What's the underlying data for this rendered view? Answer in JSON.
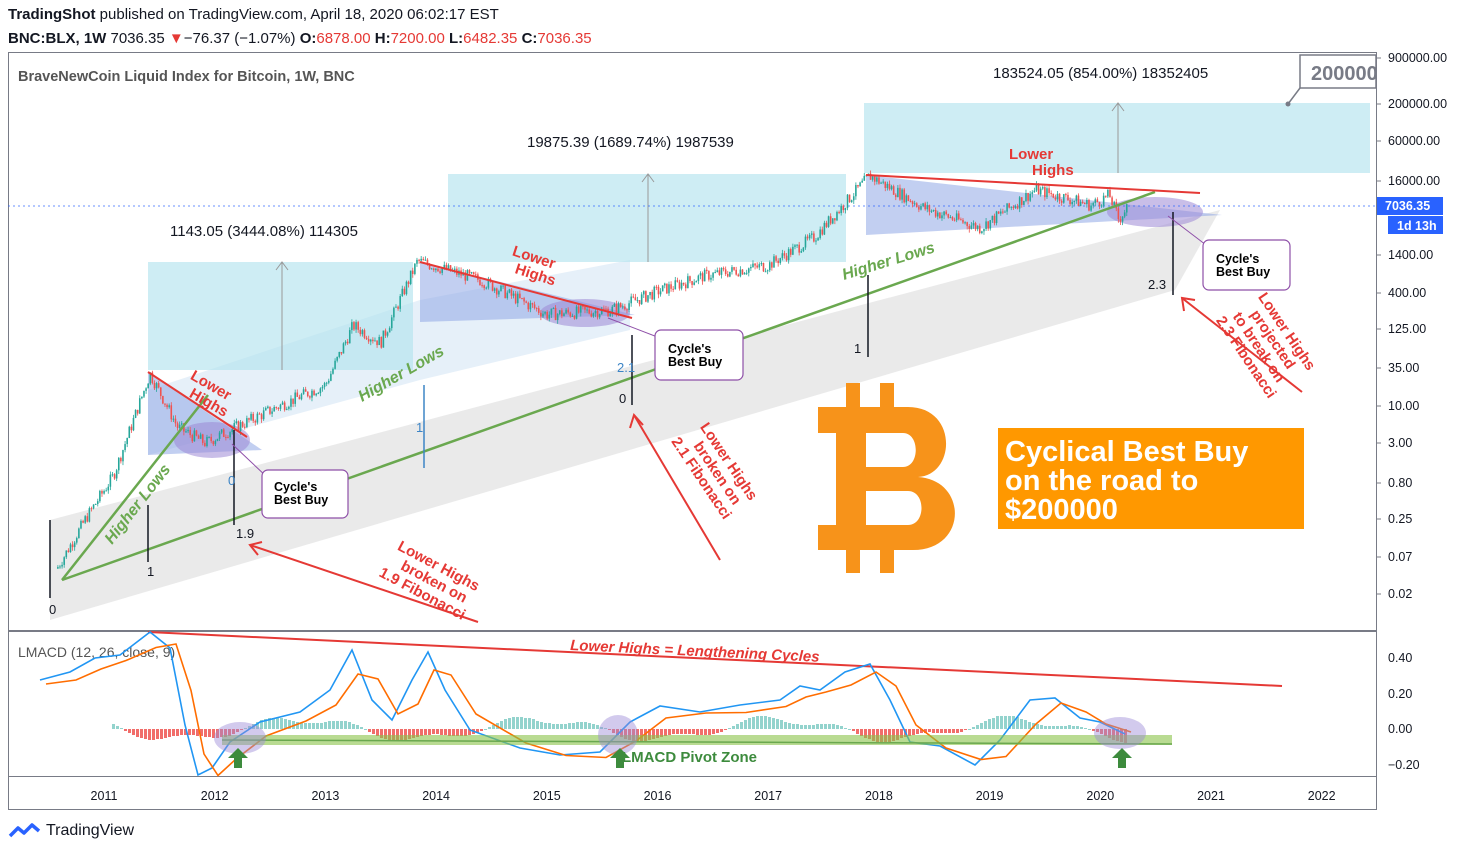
{
  "header": {
    "publisher": "TradingShot",
    "published_text": "published on TradingView.com, April 18, 2020 06:02:17 EST",
    "symbol": "BNC:BLX, 1W",
    "last": "7036.35",
    "change_arrow": "▼",
    "change": "−76.37 (−1.07%)",
    "o_label": "O:",
    "o_value": "6878.00",
    "h_label": "H:",
    "h_value": "7200.00",
    "l_label": "L:",
    "l_value": "6482.35",
    "c_label": "C:",
    "c_value": "7036.35"
  },
  "chart": {
    "title": "BraveNewCoin Liquid Index for Bitcoin, 1W, BNC",
    "price_tag": "7036.35",
    "countdown_tag": "1d 13h",
    "target_callout": "200000",
    "measure_labels": {
      "m1": "1143.05 (3444.08%) 114305",
      "m2": "19875.39 (1689.74%) 1987539",
      "m3": "183524.05 (854.00%) 18352405"
    },
    "annotations": {
      "lower_highs": [
        "Lower",
        "Highs"
      ],
      "higher_lows": "Higher Lows",
      "best_buy": [
        "Cycle's",
        "Best Buy"
      ],
      "broken_19": [
        "Lower Highs",
        "broken on",
        "1.9 Fibonacci"
      ],
      "broken_21": [
        "Lower Highs",
        "broken on",
        "2.1 Fibonacci"
      ],
      "projected_23": [
        "Lower Highs",
        "projected",
        "to break on",
        "2.3 Fibonacci"
      ],
      "cyclical": [
        "Cyclical Best Buy",
        "on the road to",
        "$200000"
      ],
      "lengthening": "Lower Highs = Lengthening Cycles",
      "pivot_zone": "LMACD Pivot Zone"
    },
    "fib_labels": {
      "f0": "0",
      "f1": "1",
      "f19": "1.9",
      "g0": "0",
      "g1": "1",
      "g21": "2.1",
      "h1": "1",
      "h23": "2.3",
      "b0": "0",
      "b1": "1"
    },
    "accent_orange": "#f7931a",
    "callout_orange": "#ff9800",
    "lower_highs_color": "#e53935",
    "higher_lows_color": "#6aa84f"
  },
  "indicator": {
    "title": "LMACD (12, 26, close, 9)",
    "yticks": [
      "0.40",
      "0.20",
      "0.00",
      "−0.20"
    ]
  },
  "chart_data": {
    "type": "line",
    "title": "BraveNewCoin Liquid Index for Bitcoin, 1W, BNC",
    "xlabel": "",
    "ylabel": "",
    "y_scale": "log",
    "x_ticks": [
      "2011",
      "2012",
      "2013",
      "2014",
      "2015",
      "2016",
      "2017",
      "2018",
      "2019",
      "2020",
      "2021",
      "2022"
    ],
    "y_ticks": [
      "900000.00",
      "200000.00",
      "60000.00",
      "16000.00",
      "1400.00",
      "400.00",
      "125.00",
      "35.00",
      "10.00",
      "3.00",
      "0.80",
      "0.25",
      "0.07",
      "0.02"
    ],
    "series": [
      {
        "values": [
          {
            "x": "2010-08",
            "y": 0.05
          },
          {
            "x": "2010-11",
            "y": 0.25
          },
          {
            "x": "2011-02",
            "y": 1.0
          },
          {
            "x": "2011-06",
            "y": 29
          },
          {
            "x": "2011-09",
            "y": 5
          },
          {
            "x": "2011-12",
            "y": 3
          },
          {
            "x": "2012-03",
            "y": 4.8
          },
          {
            "x": "2012-08",
            "y": 10
          },
          {
            "x": "2013-01",
            "y": 20
          },
          {
            "x": "2013-04",
            "y": 140
          },
          {
            "x": "2013-07",
            "y": 80
          },
          {
            "x": "2013-11",
            "y": 1150
          },
          {
            "x": "2014-06",
            "y": 600
          },
          {
            "x": "2015-01",
            "y": 200
          },
          {
            "x": "2015-08",
            "y": 230
          },
          {
            "x": "2016-01",
            "y": 420
          },
          {
            "x": "2016-06",
            "y": 700
          },
          {
            "x": "2017-01",
            "y": 1000
          },
          {
            "x": "2017-06",
            "y": 2500
          },
          {
            "x": "2017-12",
            "y": 19000
          },
          {
            "x": "2018-06",
            "y": 6500
          },
          {
            "x": "2018-12",
            "y": 3400
          },
          {
            "x": "2019-06",
            "y": 12000
          },
          {
            "x": "2019-12",
            "y": 7200
          },
          {
            "x": "2020-02",
            "y": 10000
          },
          {
            "x": "2020-03",
            "y": 4500
          },
          {
            "x": "2020-04",
            "y": 7036.35
          }
        ]
      }
    ],
    "indicator": {
      "name": "LMACD (12, 26, close, 9)",
      "y_ticks": [
        "0.40",
        "0.20",
        "0.00",
        "−0.20"
      ]
    }
  }
}
